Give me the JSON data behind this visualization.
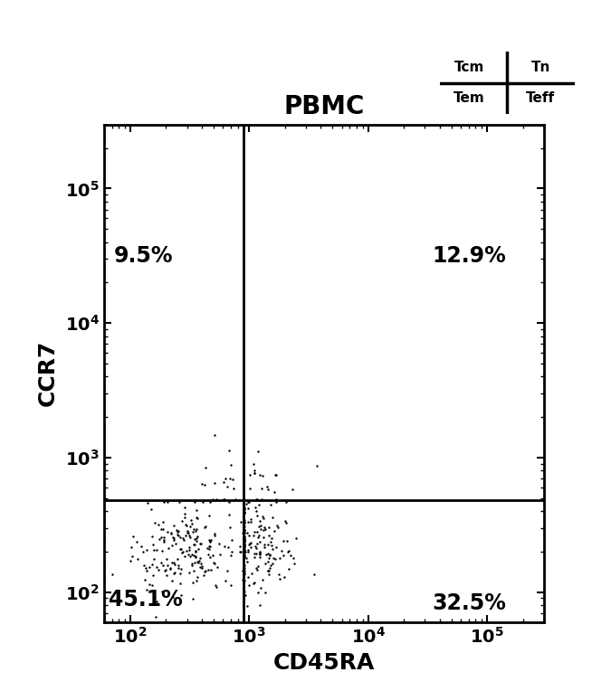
{
  "title": "PBMC",
  "xlabel": "CD45RA",
  "ylabel": "CCR7",
  "xlim": [
    60,
    300000
  ],
  "ylim": [
    60,
    300000
  ],
  "gate_x": 900,
  "gate_y": 480,
  "quadrant_labels": {
    "UL": "9.5%",
    "UR": "12.9%",
    "LL": "45.1%",
    "LR": "32.5%"
  },
  "legend_text": [
    [
      "Tcm",
      "Tn"
    ],
    [
      "Tem",
      "Teff"
    ]
  ],
  "background_color": "#ffffff",
  "dot_color": "#000000",
  "seed": 42,
  "title_fontsize": 20,
  "label_fontsize": 18,
  "tick_fontsize": 14,
  "quadrant_fontsize": 17
}
